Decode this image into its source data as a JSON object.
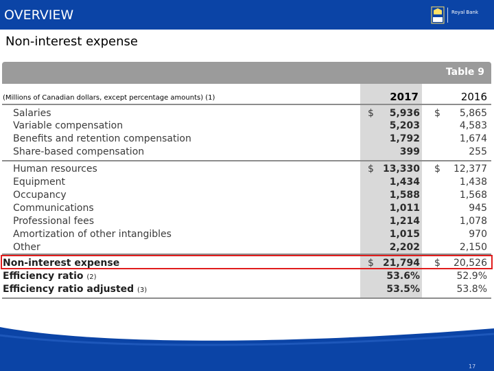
{
  "header": {
    "title": "OVERVIEW",
    "logo_text": "Royal Bank",
    "logo_emblem_text": "RBC"
  },
  "subtitle": "Non-interest expense",
  "table": {
    "label": "Table 9",
    "caption": "(Millions of Canadian dollars, except percentage amounts) (1)",
    "years": [
      "2017",
      "2016"
    ],
    "rows": [
      {
        "label": "Salaries",
        "cur1": "$",
        "v2017": "5,936",
        "cur2": "$",
        "v2016": "5,865"
      },
      {
        "label": "Variable compensation",
        "cur1": "",
        "v2017": "5,203",
        "cur2": "",
        "v2016": "4,583"
      },
      {
        "label": "Benefits and retention compensation",
        "cur1": "",
        "v2017": "1,792",
        "cur2": "",
        "v2016": "1,674"
      },
      {
        "label": "Share-based compensation",
        "cur1": "",
        "v2017": "399",
        "cur2": "",
        "v2016": "255"
      },
      {
        "label": "Human resources",
        "cur1": "$",
        "v2017": "13,330",
        "cur2": "$",
        "v2016": "12,377"
      },
      {
        "label": "Equipment",
        "cur1": "",
        "v2017": "1,434",
        "cur2": "",
        "v2016": "1,438"
      },
      {
        "label": "Occupancy",
        "cur1": "",
        "v2017": "1,588",
        "cur2": "",
        "v2016": "1,568"
      },
      {
        "label": "Communications",
        "cur1": "",
        "v2017": "1,011",
        "cur2": "",
        "v2016": "945"
      },
      {
        "label": "Professional fees",
        "cur1": "",
        "v2017": "1,214",
        "cur2": "",
        "v2016": "1,078"
      },
      {
        "label": "Amortization of other intangibles",
        "cur1": "",
        "v2017": "1,015",
        "cur2": "",
        "v2016": "970"
      },
      {
        "label": "Other",
        "cur1": "",
        "v2017": "2,202",
        "cur2": "",
        "v2016": "2,150"
      }
    ],
    "totals": [
      {
        "label": "Non-interest expense",
        "footnote": "",
        "cur1": "$",
        "v2017": "21,794",
        "cur2": "$",
        "v2016": "20,526"
      },
      {
        "label": "Efficiency ratio",
        "footnote": "(2)",
        "cur1": "",
        "v2017": "53.6%",
        "cur2": "",
        "v2016": "52.9%"
      },
      {
        "label": "Efficiency ratio adjusted",
        "footnote": "(3)",
        "cur1": "",
        "v2017": "53.5%",
        "cur2": "",
        "v2016": "53.8%"
      }
    ]
  },
  "page_number": "17",
  "colors": {
    "brand_blue": "#0b44a6",
    "highlight_red": "#e01b1b",
    "table_header_gray": "#9b9b9b"
  }
}
